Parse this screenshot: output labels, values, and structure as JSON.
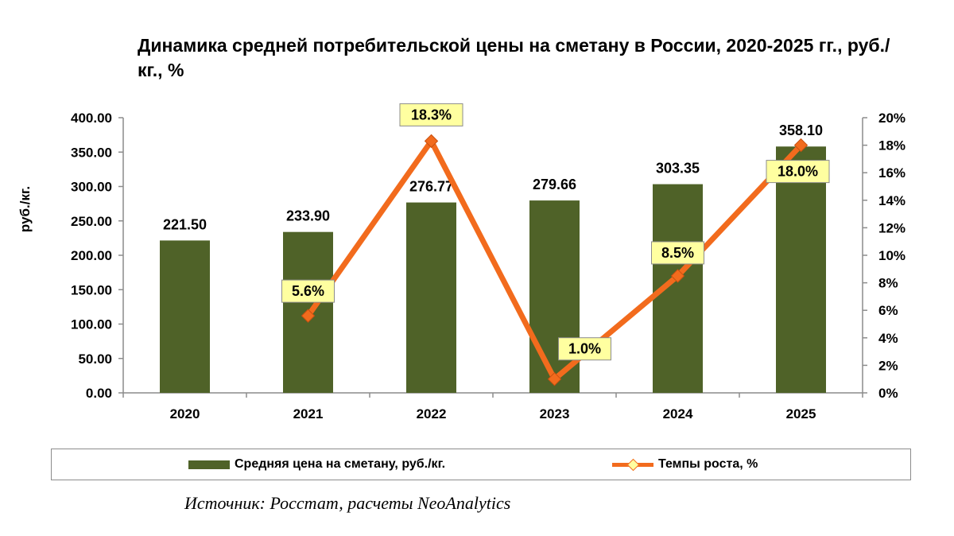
{
  "chart_data": {
    "type": "bar",
    "title": "Динамика средней потребительской цены на сметану в России, 2020-2025 гг., руб./кг., %",
    "categories": [
      "2020",
      "2021",
      "2022",
      "2023",
      "2024",
      "2025"
    ],
    "series": [
      {
        "name": "Средняя цена на сметану, руб./кг.",
        "kind": "bar",
        "axis": "left",
        "color": "#4f6228",
        "values": [
          221.5,
          233.9,
          276.77,
          279.66,
          303.35,
          358.1
        ],
        "labels": [
          "221.50",
          "233.90",
          "276.77",
          "279.66",
          "303.35",
          "358.10"
        ]
      },
      {
        "name": "Темпы роста, %",
        "kind": "line",
        "axis": "right",
        "color": "#f26b1d",
        "marker_color": "#ffffa0",
        "values": [
          null,
          5.6,
          18.3,
          1.0,
          8.5,
          18.0
        ],
        "labels": [
          null,
          "5.6%",
          "18.3%",
          "1.0%",
          "8.5%",
          "18.0%"
        ]
      }
    ],
    "ylabel": "руб./кг.",
    "ylim": [
      0,
      400
    ],
    "yticks": [
      "0.00",
      "50.00",
      "100.00",
      "150.00",
      "200.00",
      "250.00",
      "300.00",
      "350.00",
      "400.00"
    ],
    "y2lim": [
      0,
      20
    ],
    "y2ticks": [
      "0%",
      "2%",
      "4%",
      "6%",
      "8%",
      "10%",
      "12%",
      "14%",
      "16%",
      "18%",
      "20%"
    ],
    "legend_position": "bottom",
    "grid": false
  },
  "source": "Источник: Росстат, расчеты NeoAnalytics"
}
